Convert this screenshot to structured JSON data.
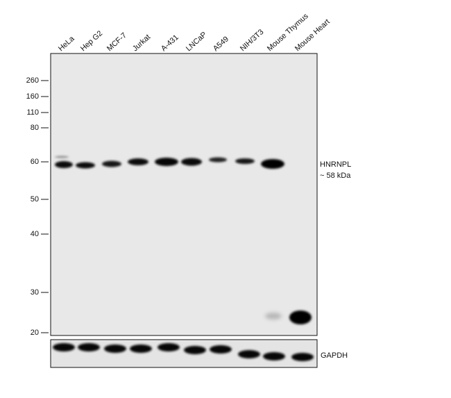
{
  "lanes": [
    "HeLa",
    "Hep G2",
    "MCF-7",
    "Jurkat",
    "A-431",
    "LNCaP",
    "A549",
    "NIH/3T3",
    "Mouse Thymus",
    "Mouse Heart"
  ],
  "markers": [
    "260",
    "160",
    "110",
    "80",
    "60",
    "50",
    "40",
    "30",
    "20"
  ],
  "target": {
    "name": "HNRNPL",
    "size": "~ 58 kDa"
  },
  "loading_control": "GAPDH"
}
